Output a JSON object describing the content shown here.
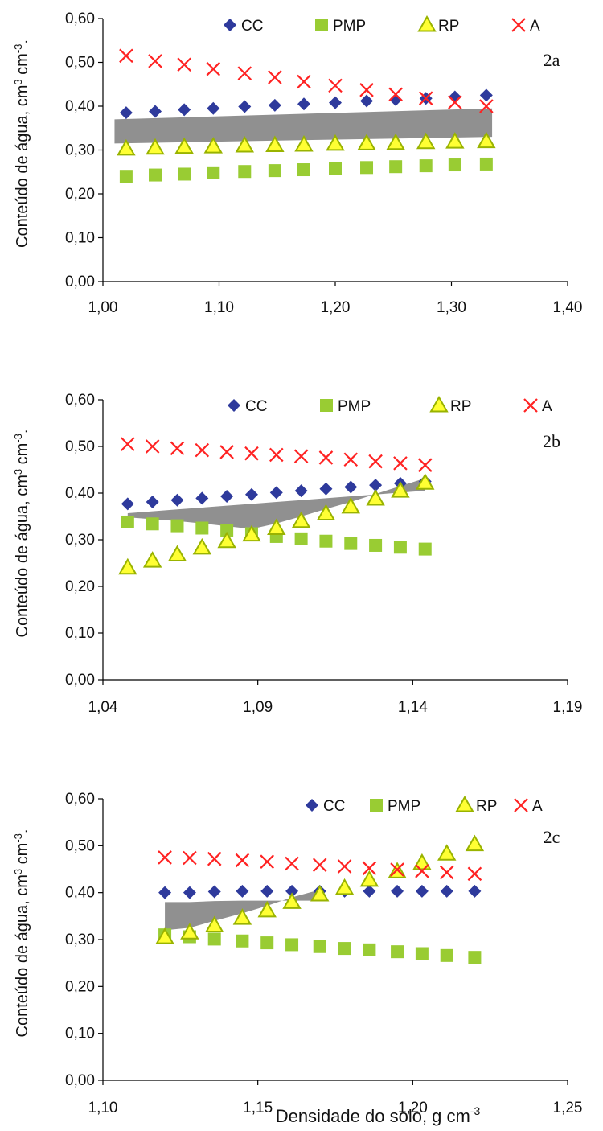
{
  "colors": {
    "CC": "#2e3a9c",
    "PMP": "#99cc33",
    "RP": "#ffff33",
    "RP_stroke": "#99b300",
    "A": "#ff2222",
    "band": "#8a8a8a",
    "axis": "#000000"
  },
  "x_axis_title_base": "Densidade do solo, g cm",
  "x_axis_title_sup": "-3",
  "chart_data": [
    {
      "type": "scatter",
      "panel_label": "2a",
      "ylabel_base": "Conteúdo de água, cm",
      "ylabel_sup1": "3",
      "ylabel_mid": " cm",
      "ylabel_sup2": "-3",
      "ylabel_end": ".",
      "xlim": [
        1.0,
        1.4
      ],
      "ylim": [
        0.0,
        0.6
      ],
      "xticks": [
        "1,00",
        "1,10",
        "1,20",
        "1,30",
        "1,40"
      ],
      "yticks": [
        "0,00",
        "0,10",
        "0,20",
        "0,30",
        "0,40",
        "0,50",
        "0,60"
      ],
      "x": [
        1.02,
        1.045,
        1.07,
        1.095,
        1.122,
        1.148,
        1.173,
        1.2,
        1.227,
        1.252,
        1.278,
        1.303,
        1.33
      ],
      "series": [
        {
          "name": "CC",
          "values": [
            0.385,
            0.388,
            0.392,
            0.395,
            0.399,
            0.402,
            0.405,
            0.408,
            0.412,
            0.415,
            0.418,
            0.421,
            0.425
          ]
        },
        {
          "name": "PMP",
          "values": [
            0.24,
            0.243,
            0.245,
            0.248,
            0.251,
            0.253,
            0.255,
            0.257,
            0.26,
            0.262,
            0.264,
            0.266,
            0.268
          ]
        },
        {
          "name": "RP",
          "values": [
            0.303,
            0.305,
            0.307,
            0.308,
            0.31,
            0.311,
            0.312,
            0.314,
            0.315,
            0.316,
            0.318,
            0.319,
            0.32
          ]
        },
        {
          "name": "A",
          "values": [
            0.515,
            0.503,
            0.495,
            0.485,
            0.475,
            0.466,
            0.456,
            0.447,
            0.437,
            0.427,
            0.418,
            0.409,
            0.4
          ]
        }
      ],
      "band": {
        "x_start": 1.01,
        "x_end": 1.335,
        "upper": [
          0.37,
          0.395
        ],
        "lower": [
          0.315,
          0.33
        ]
      },
      "legend": [
        "CC",
        "PMP",
        "RP",
        "A"
      ]
    },
    {
      "type": "scatter",
      "panel_label": "2b",
      "ylabel_base": "Conteúdo de água, cm",
      "ylabel_sup1": "3",
      "ylabel_mid": " cm",
      "ylabel_sup2": "-3",
      "ylabel_end": ".",
      "xlim": [
        1.04,
        1.19
      ],
      "ylim": [
        0.0,
        0.6
      ],
      "xticks": [
        "1,04",
        "1,09",
        "1,14",
        "1,19"
      ],
      "yticks": [
        "0,00",
        "0,10",
        "0,20",
        "0,30",
        "0,40",
        "0,50",
        "0,60"
      ],
      "x": [
        1.048,
        1.056,
        1.064,
        1.072,
        1.08,
        1.088,
        1.096,
        1.104,
        1.112,
        1.12,
        1.128,
        1.136,
        1.144
      ],
      "series": [
        {
          "name": "CC",
          "values": [
            0.377,
            0.381,
            0.385,
            0.389,
            0.393,
            0.397,
            0.401,
            0.405,
            0.409,
            0.413,
            0.417,
            0.421,
            0.425
          ]
        },
        {
          "name": "PMP",
          "values": [
            0.338,
            0.334,
            0.33,
            0.325,
            0.319,
            0.313,
            0.307,
            0.302,
            0.297,
            0.292,
            0.288,
            0.284,
            0.28
          ]
        },
        {
          "name": "RP",
          "values": [
            0.24,
            0.255,
            0.268,
            0.283,
            0.297,
            0.311,
            0.325,
            0.34,
            0.356,
            0.371,
            0.388,
            0.405,
            0.422
          ]
        },
        {
          "name": "A",
          "values": [
            0.505,
            0.5,
            0.496,
            0.492,
            0.488,
            0.485,
            0.482,
            0.479,
            0.476,
            0.472,
            0.468,
            0.464,
            0.46
          ]
        }
      ],
      "legend": [
        "CC",
        "PMP",
        "RP",
        "A"
      ]
    },
    {
      "type": "scatter",
      "panel_label": "2c",
      "ylabel_base": "Conteúdo de água, cm",
      "ylabel_sup1": "3",
      "ylabel_mid": " cm",
      "ylabel_sup2": "-3",
      "ylabel_end": ".",
      "xlim": [
        1.1,
        1.25
      ],
      "ylim": [
        0.0,
        0.6
      ],
      "xticks": [
        "1,10",
        "1,15",
        "1,20",
        "1,25"
      ],
      "yticks": [
        "0,00",
        "0,10",
        "0,20",
        "0,30",
        "0,40",
        "0,50",
        "0,60"
      ],
      "x": [
        1.12,
        1.128,
        1.136,
        1.145,
        1.153,
        1.161,
        1.17,
        1.178,
        1.186,
        1.195,
        1.203,
        1.211,
        1.22
      ],
      "series": [
        {
          "name": "CC",
          "values": [
            0.4,
            0.4,
            0.402,
            0.403,
            0.403,
            0.403,
            0.403,
            0.403,
            0.403,
            0.403,
            0.403,
            0.403,
            0.403
          ]
        },
        {
          "name": "PMP",
          "values": [
            0.31,
            0.306,
            0.301,
            0.297,
            0.293,
            0.289,
            0.285,
            0.281,
            0.278,
            0.274,
            0.27,
            0.266,
            0.262
          ]
        },
        {
          "name": "RP",
          "values": [
            0.305,
            0.315,
            0.33,
            0.346,
            0.362,
            0.38,
            0.396,
            0.41,
            0.427,
            0.445,
            0.463,
            0.483,
            0.503
          ]
        },
        {
          "name": "A",
          "values": [
            0.475,
            0.474,
            0.472,
            0.469,
            0.466,
            0.462,
            0.459,
            0.456,
            0.452,
            0.449,
            0.446,
            0.443,
            0.44
          ]
        }
      ],
      "legend": [
        "CC",
        "PMP",
        "RP",
        "A"
      ]
    }
  ]
}
